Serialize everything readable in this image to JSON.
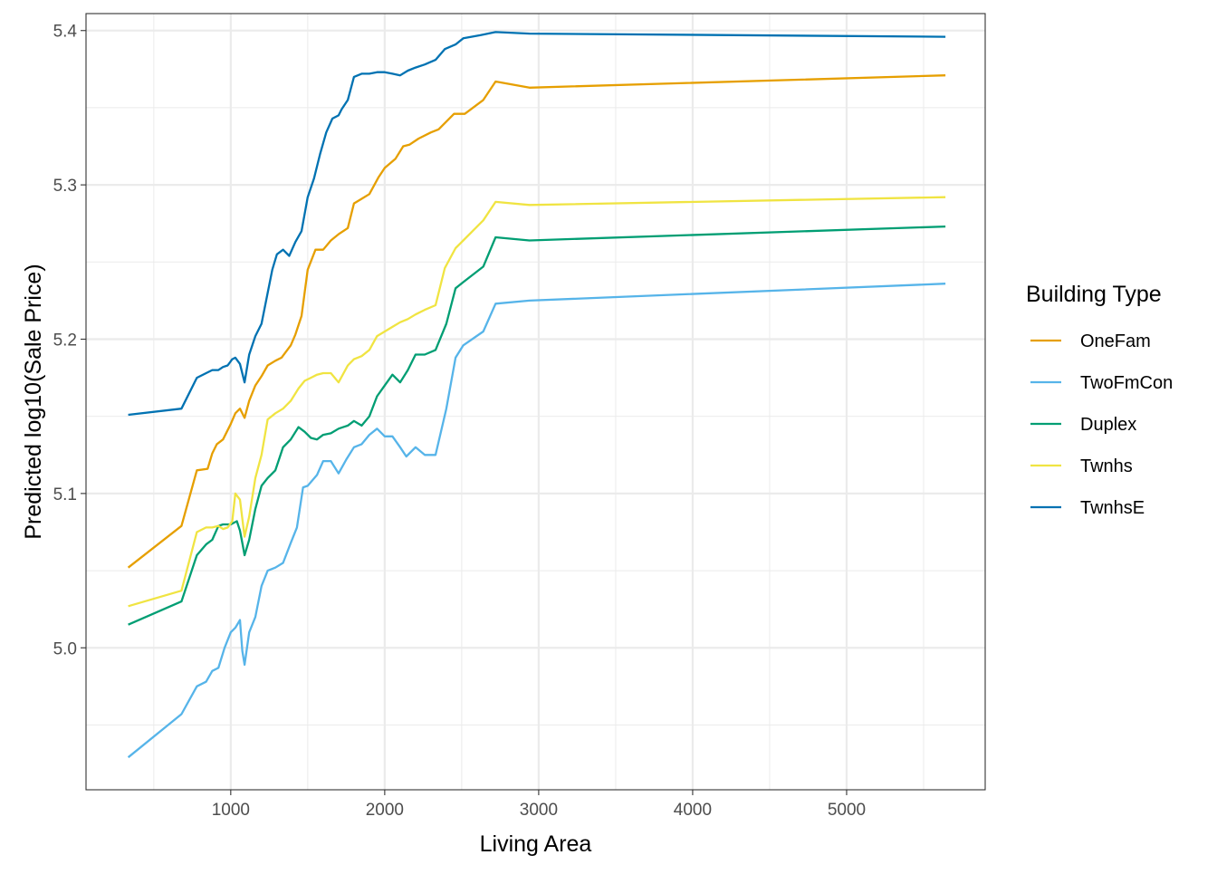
{
  "chart_data": {
    "type": "line",
    "title": "",
    "xlabel": "Living Area",
    "ylabel": "Predicted log10(Sale Price)",
    "xlim": [
      60,
      5900
    ],
    "ylim": [
      4.908,
      5.411
    ],
    "x_ticks": [
      1000,
      2000,
      3000,
      4000,
      5000
    ],
    "x_tick_labels": [
      "1000",
      "2000",
      "3000",
      "4000",
      "5000"
    ],
    "x_minor_ticks": [
      500,
      1500,
      2500,
      3500,
      4500,
      5500
    ],
    "y_ticks": [
      5.0,
      5.1,
      5.2,
      5.3,
      5.4
    ],
    "y_tick_labels": [
      "5.0",
      "5.1",
      "5.2",
      "5.3",
      "5.4"
    ],
    "y_minor_ticks": [
      4.95,
      5.05,
      5.15,
      5.25,
      5.35
    ],
    "grid": true,
    "legend": {
      "title": "Building Type",
      "position": "right"
    },
    "series": [
      {
        "name": "OneFam",
        "color": "#E69F00",
        "x": [
          334,
          680,
          780,
          850,
          880,
          910,
          950,
          1000,
          1030,
          1060,
          1090,
          1120,
          1160,
          1200,
          1240,
          1290,
          1330,
          1390,
          1420,
          1460,
          1500,
          1550,
          1600,
          1650,
          1700,
          1760,
          1800,
          1850,
          1900,
          1960,
          2000,
          2070,
          2120,
          2160,
          2220,
          2300,
          2350,
          2450,
          2520,
          2640,
          2720,
          2940,
          5642
        ],
        "y": [
          5.052,
          5.079,
          5.115,
          5.116,
          5.126,
          5.132,
          5.135,
          5.145,
          5.152,
          5.155,
          5.149,
          5.16,
          5.17,
          5.176,
          5.183,
          5.186,
          5.188,
          5.196,
          5.203,
          5.215,
          5.245,
          5.258,
          5.258,
          5.264,
          5.268,
          5.272,
          5.288,
          5.291,
          5.294,
          5.305,
          5.311,
          5.317,
          5.325,
          5.326,
          5.33,
          5.334,
          5.336,
          5.346,
          5.346,
          5.355,
          5.367,
          5.363,
          5.371
        ]
      },
      {
        "name": "TwoFmCon",
        "color": "#56B4E9",
        "x": [
          334,
          680,
          780,
          840,
          880,
          920,
          960,
          1000,
          1030,
          1060,
          1075,
          1090,
          1120,
          1160,
          1200,
          1240,
          1290,
          1340,
          1390,
          1430,
          1470,
          1500,
          1560,
          1600,
          1650,
          1700,
          1750,
          1800,
          1850,
          1900,
          1950,
          2000,
          2050,
          2100,
          2140,
          2200,
          2260,
          2330,
          2400,
          2460,
          2510,
          2640,
          2720,
          2940,
          5642
        ],
        "y": [
          4.929,
          4.957,
          4.975,
          4.978,
          4.985,
          4.987,
          5.0,
          5.01,
          5.013,
          5.018,
          4.998,
          4.989,
          5.01,
          5.02,
          5.04,
          5.05,
          5.052,
          5.055,
          5.068,
          5.078,
          5.104,
          5.105,
          5.112,
          5.121,
          5.121,
          5.113,
          5.122,
          5.13,
          5.132,
          5.138,
          5.142,
          5.137,
          5.137,
          5.13,
          5.124,
          5.13,
          5.125,
          5.125,
          5.155,
          5.188,
          5.196,
          5.205,
          5.223,
          5.225,
          5.236
        ]
      },
      {
        "name": "Duplex",
        "color": "#009E73",
        "x": [
          334,
          680,
          780,
          840,
          880,
          920,
          950,
          1000,
          1040,
          1060,
          1075,
          1090,
          1120,
          1160,
          1200,
          1240,
          1290,
          1340,
          1390,
          1440,
          1480,
          1520,
          1560,
          1600,
          1650,
          1700,
          1760,
          1800,
          1850,
          1900,
          1950,
          2000,
          2050,
          2100,
          2150,
          2200,
          2260,
          2330,
          2400,
          2460,
          2510,
          2640,
          2720,
          2940,
          5642
        ],
        "y": [
          5.015,
          5.03,
          5.06,
          5.067,
          5.07,
          5.079,
          5.08,
          5.08,
          5.082,
          5.076,
          5.068,
          5.06,
          5.07,
          5.09,
          5.105,
          5.11,
          5.115,
          5.13,
          5.135,
          5.143,
          5.14,
          5.136,
          5.135,
          5.138,
          5.139,
          5.142,
          5.144,
          5.147,
          5.144,
          5.15,
          5.163,
          5.17,
          5.177,
          5.172,
          5.18,
          5.19,
          5.19,
          5.193,
          5.21,
          5.233,
          5.237,
          5.247,
          5.266,
          5.264,
          5.273
        ]
      },
      {
        "name": "Twnhs",
        "color": "#F0E442",
        "x": [
          334,
          680,
          780,
          840,
          880,
          920,
          950,
          980,
          1010,
          1030,
          1060,
          1090,
          1120,
          1160,
          1200,
          1240,
          1290,
          1340,
          1390,
          1440,
          1480,
          1520,
          1560,
          1600,
          1650,
          1700,
          1760,
          1800,
          1850,
          1900,
          1950,
          2000,
          2050,
          2100,
          2150,
          2200,
          2260,
          2330,
          2390,
          2460,
          2510,
          2640,
          2720,
          2940,
          5642
        ],
        "y": [
          5.027,
          5.037,
          5.075,
          5.078,
          5.078,
          5.079,
          5.077,
          5.078,
          5.082,
          5.1,
          5.096,
          5.072,
          5.085,
          5.11,
          5.125,
          5.148,
          5.152,
          5.155,
          5.16,
          5.168,
          5.173,
          5.175,
          5.177,
          5.178,
          5.178,
          5.172,
          5.183,
          5.187,
          5.189,
          5.193,
          5.202,
          5.205,
          5.208,
          5.211,
          5.213,
          5.216,
          5.219,
          5.222,
          5.246,
          5.259,
          5.264,
          5.277,
          5.289,
          5.287,
          5.292
        ]
      },
      {
        "name": "TwnhsE",
        "color": "#0072B2",
        "x": [
          334,
          680,
          780,
          840,
          880,
          920,
          950,
          980,
          1010,
          1030,
          1060,
          1090,
          1120,
          1160,
          1200,
          1240,
          1270,
          1300,
          1340,
          1380,
          1420,
          1460,
          1500,
          1540,
          1580,
          1620,
          1660,
          1700,
          1720,
          1760,
          1800,
          1850,
          1900,
          1950,
          2000,
          2050,
          2100,
          2150,
          2200,
          2260,
          2330,
          2390,
          2460,
          2510,
          2620,
          2720,
          2940,
          5642
        ],
        "y": [
          5.151,
          5.155,
          5.175,
          5.178,
          5.18,
          5.18,
          5.182,
          5.183,
          5.187,
          5.188,
          5.184,
          5.172,
          5.19,
          5.202,
          5.21,
          5.23,
          5.245,
          5.255,
          5.258,
          5.254,
          5.263,
          5.27,
          5.292,
          5.304,
          5.32,
          5.334,
          5.343,
          5.345,
          5.349,
          5.355,
          5.37,
          5.372,
          5.372,
          5.373,
          5.373,
          5.372,
          5.371,
          5.374,
          5.376,
          5.378,
          5.381,
          5.388,
          5.391,
          5.395,
          5.397,
          5.399,
          5.398,
          5.396
        ]
      }
    ]
  }
}
